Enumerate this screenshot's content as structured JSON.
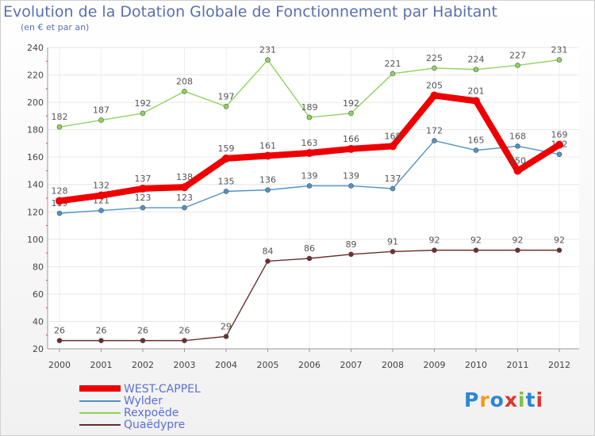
{
  "chart_data": {
    "type": "line",
    "title": "Evolution de la Dotation Globale de Fonctionnement par Habitant",
    "subtitle": "(en € et par an)",
    "xlabel": "",
    "ylabel": "",
    "x": [
      "2000",
      "2001",
      "2002",
      "2003",
      "2004",
      "2005",
      "2006",
      "2007",
      "2008",
      "2009",
      "2010",
      "2011",
      "2012"
    ],
    "ylim": [
      20,
      240
    ],
    "yticks": [
      20,
      40,
      60,
      80,
      100,
      120,
      140,
      160,
      180,
      200,
      220,
      240
    ],
    "grid": true,
    "legend_position": "bottom-left",
    "series": [
      {
        "name": "WEST-CAPPEL",
        "color": "#ee0000",
        "values": [
          128,
          132,
          137,
          138,
          159,
          161,
          163,
          166,
          168,
          205,
          201,
          150,
          169
        ]
      },
      {
        "name": "Wylder",
        "color": "#4f92c7",
        "values": [
          119,
          121,
          123,
          123,
          135,
          136,
          139,
          139,
          137,
          172,
          165,
          168,
          162
        ]
      },
      {
        "name": "Rexpoëde",
        "color": "#8fd35e",
        "values": [
          182,
          187,
          192,
          208,
          197,
          231,
          189,
          192,
          221,
          225,
          224,
          227,
          231
        ]
      },
      {
        "name": "Quaëdypre",
        "color": "#6b2d2d",
        "values": [
          26,
          26,
          26,
          26,
          29,
          84,
          86,
          89,
          91,
          92,
          92,
          92,
          92
        ]
      }
    ]
  },
  "logo": {
    "text": "Proxiti",
    "letters": [
      "P",
      "r",
      "o",
      "x",
      "i",
      "t",
      "i"
    ],
    "colors": [
      "#2a86d6",
      "#f29a1a",
      "#2a86d6",
      "#e0352b",
      "#7cc242",
      "#2a86d6",
      "#e0352b"
    ]
  }
}
